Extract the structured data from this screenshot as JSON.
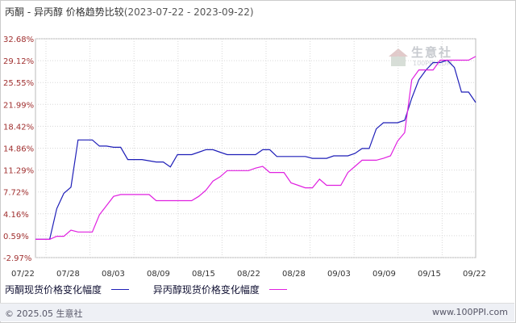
{
  "title": {
    "main": "丙酮 - 异丙醇 价格趋势比较",
    "range": "(2023-07-22 - 2023-09-22)"
  },
  "watermark": {
    "text": "生意社",
    "sub": "100PPI.COM"
  },
  "legend": [
    {
      "label": "丙酮现货价格变化幅度",
      "color": "#1f1fb8"
    },
    {
      "label": "异丙醇现货价格变化幅度",
      "color": "#e020e0"
    }
  ],
  "footer": {
    "copyright": "© 2025.05 生意社",
    "site": "www.100PPI.com"
  },
  "chart_data": {
    "type": "line",
    "x_tick_labels": [
      "07/22",
      "07/28",
      "08/03",
      "08/09",
      "08/15",
      "08/22",
      "08/28",
      "09/03",
      "09/09",
      "09/15",
      "09/22"
    ],
    "y_tick_labels": [
      "32.68%",
      "29.12%",
      "25.55%",
      "21.99%",
      "18.42%",
      "14.86%",
      "11.29%",
      "7.72%",
      "4.16%",
      "0.59%",
      "-2.97%"
    ],
    "ylim": [
      -2.97,
      32.68
    ],
    "x_range_days": [
      0,
      62
    ],
    "grid": true,
    "series": [
      {
        "name": "丙酮现货价格变化幅度",
        "color": "#1f1fb8",
        "points": [
          [
            0,
            0
          ],
          [
            1,
            0
          ],
          [
            2,
            0
          ],
          [
            3,
            5.0
          ],
          [
            4,
            7.5
          ],
          [
            5,
            8.5
          ],
          [
            6,
            16.2
          ],
          [
            7,
            16.2
          ],
          [
            8,
            16.2
          ],
          [
            9,
            15.2
          ],
          [
            10,
            15.2
          ],
          [
            11,
            15.0
          ],
          [
            12,
            15.0
          ],
          [
            13,
            13.0
          ],
          [
            14,
            13.0
          ],
          [
            15,
            13.0
          ],
          [
            16,
            12.8
          ],
          [
            17,
            12.6
          ],
          [
            18,
            12.6
          ],
          [
            19,
            11.8
          ],
          [
            20,
            13.8
          ],
          [
            21,
            13.8
          ],
          [
            22,
            13.8
          ],
          [
            23,
            14.2
          ],
          [
            24,
            14.6
          ],
          [
            25,
            14.6
          ],
          [
            26,
            14.2
          ],
          [
            27,
            13.8
          ],
          [
            28,
            13.8
          ],
          [
            29,
            13.8
          ],
          [
            30,
            13.8
          ],
          [
            31,
            13.8
          ],
          [
            32,
            14.6
          ],
          [
            33,
            14.6
          ],
          [
            34,
            13.5
          ],
          [
            35,
            13.5
          ],
          [
            36,
            13.5
          ],
          [
            37,
            13.5
          ],
          [
            38,
            13.5
          ],
          [
            39,
            13.2
          ],
          [
            40,
            13.2
          ],
          [
            41,
            13.2
          ],
          [
            42,
            13.6
          ],
          [
            43,
            13.6
          ],
          [
            44,
            13.6
          ],
          [
            45,
            14.0
          ],
          [
            46,
            14.8
          ],
          [
            47,
            14.8
          ],
          [
            48,
            18.0
          ],
          [
            49,
            19.0
          ],
          [
            50,
            19.0
          ],
          [
            51,
            19.0
          ],
          [
            52,
            19.4
          ],
          [
            53,
            23.0
          ],
          [
            54,
            26.0
          ],
          [
            55,
            27.6
          ],
          [
            56,
            28.8
          ],
          [
            57,
            28.8
          ],
          [
            58,
            29.2
          ],
          [
            59,
            28.0
          ],
          [
            60,
            24.0
          ],
          [
            61,
            24.0
          ],
          [
            62,
            22.3
          ]
        ]
      },
      {
        "name": "异丙醇现货价格变化幅度",
        "color": "#e020e0",
        "points": [
          [
            0,
            0
          ],
          [
            1,
            0
          ],
          [
            2,
            0
          ],
          [
            3,
            0.5
          ],
          [
            4,
            0.5
          ],
          [
            5,
            1.5
          ],
          [
            6,
            1.2
          ],
          [
            7,
            1.2
          ],
          [
            8,
            1.2
          ],
          [
            9,
            4.0
          ],
          [
            10,
            5.5
          ],
          [
            11,
            7.0
          ],
          [
            12,
            7.3
          ],
          [
            13,
            7.3
          ],
          [
            14,
            7.3
          ],
          [
            15,
            7.3
          ],
          [
            16,
            7.3
          ],
          [
            17,
            6.3
          ],
          [
            18,
            6.3
          ],
          [
            19,
            6.3
          ],
          [
            20,
            6.3
          ],
          [
            21,
            6.3
          ],
          [
            22,
            6.3
          ],
          [
            23,
            7.0
          ],
          [
            24,
            8.0
          ],
          [
            25,
            9.5
          ],
          [
            26,
            10.2
          ],
          [
            27,
            11.2
          ],
          [
            28,
            11.2
          ],
          [
            29,
            11.2
          ],
          [
            30,
            11.2
          ],
          [
            31,
            11.6
          ],
          [
            32,
            11.9
          ],
          [
            33,
            10.9
          ],
          [
            34,
            10.9
          ],
          [
            35,
            10.9
          ],
          [
            36,
            9.2
          ],
          [
            37,
            8.8
          ],
          [
            38,
            8.4
          ],
          [
            39,
            8.4
          ],
          [
            40,
            9.8
          ],
          [
            41,
            8.8
          ],
          [
            42,
            8.8
          ],
          [
            43,
            8.8
          ],
          [
            44,
            10.9
          ],
          [
            45,
            11.9
          ],
          [
            46,
            12.9
          ],
          [
            47,
            12.9
          ],
          [
            48,
            12.9
          ],
          [
            49,
            13.2
          ],
          [
            50,
            13.6
          ],
          [
            51,
            16.0
          ],
          [
            52,
            17.4
          ],
          [
            53,
            26.0
          ],
          [
            54,
            27.6
          ],
          [
            55,
            27.6
          ],
          [
            56,
            27.6
          ],
          [
            57,
            29.2
          ],
          [
            58,
            29.2
          ],
          [
            59,
            29.2
          ],
          [
            60,
            29.2
          ],
          [
            61,
            29.2
          ],
          [
            62,
            29.8
          ]
        ]
      }
    ]
  }
}
